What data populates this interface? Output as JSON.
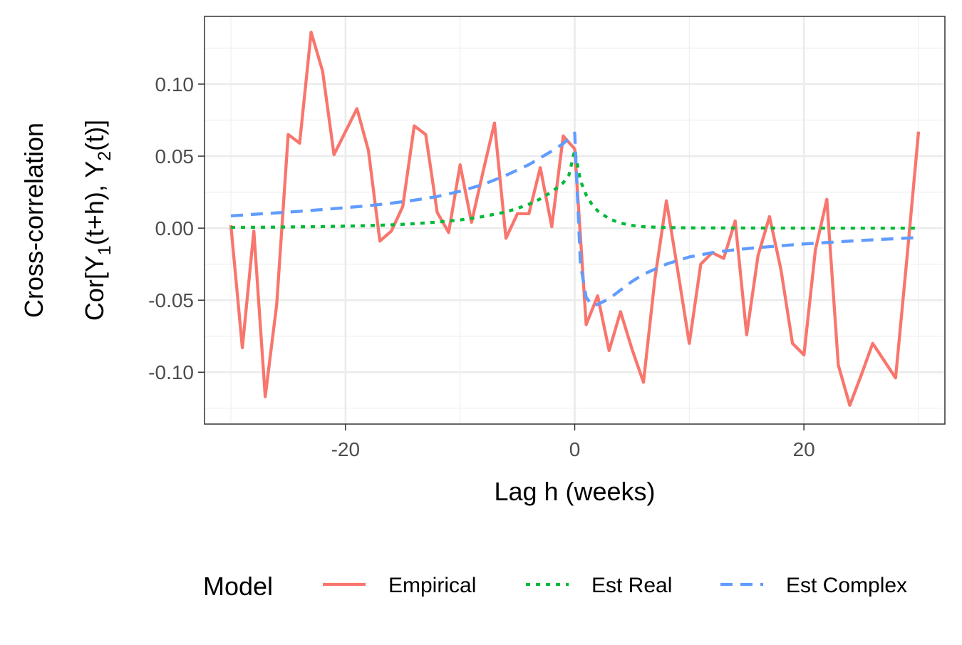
{
  "chart_data": {
    "type": "line",
    "xlabel": "Lag h (weeks)",
    "ylabel_line1": "Cross-correlation",
    "ylabel_line2": {
      "prefix": "Cor[Y",
      "sub1": "1",
      "mid": "(t+h), Y",
      "sub2": "2",
      "suffix": "(t)]"
    },
    "xlim": [
      -32.3,
      32.3
    ],
    "ylim": [
      -0.136,
      0.147
    ],
    "x_ticks": [
      -20,
      0,
      20
    ],
    "x_tick_labels": [
      "-20",
      "0",
      "20"
    ],
    "x_minor_ticks": [
      -30,
      -10,
      10,
      30
    ],
    "y_ticks": [
      -0.1,
      -0.05,
      0.0,
      0.05,
      0.1
    ],
    "y_tick_labels": [
      "-0.10",
      "-0.05",
      "0.00",
      "0.05",
      "0.10"
    ],
    "y_minor_ticks": [
      -0.125,
      -0.075,
      -0.025,
      0.025,
      0.075,
      0.125
    ],
    "grid": true,
    "legend": {
      "title": "Model",
      "position": "bottom"
    },
    "series": [
      {
        "name": "Empirical",
        "color": "#F8766D",
        "dash": "solid",
        "x": [
          -30,
          -29,
          -28,
          -27,
          -26,
          -25,
          -24,
          -23,
          -22,
          -21,
          -20,
          -19,
          -18,
          -17,
          -16,
          -15,
          -14,
          -13,
          -12,
          -11,
          -10,
          -9,
          -8,
          -7,
          -6,
          -5,
          -4,
          -3,
          -2,
          -1,
          0,
          1,
          2,
          3,
          4,
          5,
          6,
          7,
          8,
          9,
          10,
          11,
          12,
          13,
          14,
          15,
          16,
          17,
          18,
          19,
          20,
          21,
          22,
          23,
          24,
          25,
          26,
          27,
          28,
          29,
          30
        ],
        "y": [
          0.002,
          -0.083,
          -0.002,
          -0.117,
          -0.053,
          0.065,
          0.059,
          0.136,
          0.109,
          0.051,
          0.067,
          0.083,
          0.054,
          -0.009,
          -0.002,
          0.015,
          0.071,
          0.065,
          0.011,
          -0.003,
          0.044,
          0.004,
          0.039,
          0.073,
          -0.007,
          0.01,
          0.01,
          0.042,
          0.001,
          0.064,
          0.055,
          -0.067,
          -0.047,
          -0.085,
          -0.058,
          -0.084,
          -0.107,
          -0.035,
          0.019,
          -0.03,
          -0.08,
          -0.025,
          -0.017,
          -0.021,
          0.005,
          -0.074,
          -0.019,
          0.008,
          -0.029,
          -0.08,
          -0.088,
          -0.015,
          0.02,
          -0.095,
          -0.123,
          -0.102,
          -0.08,
          -0.092,
          -0.104,
          -0.02,
          0.067
        ]
      },
      {
        "name": "Est Real",
        "color": "#00BA38",
        "dash": "dotted",
        "x": [
          -30,
          -28,
          -26,
          -24,
          -22,
          -20,
          -18,
          -16,
          -14,
          -12,
          -10,
          -8,
          -6,
          -5,
          -4,
          -3,
          -2,
          -1,
          -0.5,
          0,
          0.5,
          1,
          1.5,
          2,
          3,
          4,
          5,
          6,
          8,
          10,
          15,
          20,
          25,
          30
        ],
        "y": [
          0.0005,
          0.0006,
          0.0007,
          0.0009,
          0.0011,
          0.0014,
          0.0018,
          0.0023,
          0.0031,
          0.0042,
          0.0057,
          0.008,
          0.0113,
          0.0137,
          0.0166,
          0.0203,
          0.0252,
          0.0315,
          0.037,
          0.054,
          0.033,
          0.023,
          0.0165,
          0.012,
          0.0065,
          0.0035,
          0.0019,
          0.001,
          0.0004,
          0.0002,
          0.0001,
          0.0,
          0.0,
          0.0
        ]
      },
      {
        "name": "Est Complex",
        "color": "#619CFF",
        "dash": "dashed",
        "x": [
          -30,
          -28,
          -26,
          -24,
          -22,
          -20,
          -18,
          -16,
          -14,
          -12,
          -10,
          -8,
          -6,
          -4,
          -2,
          -1,
          0,
          0.5,
          1,
          1.5,
          2,
          3,
          4,
          5,
          6,
          8,
          10,
          12,
          14,
          16,
          18,
          20,
          22,
          24,
          26,
          28,
          30
        ],
        "y": [
          0.0085,
          0.0096,
          0.0106,
          0.0117,
          0.0129,
          0.0142,
          0.0156,
          0.0173,
          0.0194,
          0.022,
          0.0256,
          0.0303,
          0.0366,
          0.0441,
          0.0535,
          0.0587,
          0.066,
          -0.025,
          -0.048,
          -0.0535,
          -0.053,
          -0.049,
          -0.043,
          -0.037,
          -0.032,
          -0.025,
          -0.02,
          -0.017,
          -0.015,
          -0.0135,
          -0.0122,
          -0.011,
          -0.01,
          -0.009,
          -0.0081,
          -0.0073,
          -0.0065
        ]
      }
    ]
  }
}
